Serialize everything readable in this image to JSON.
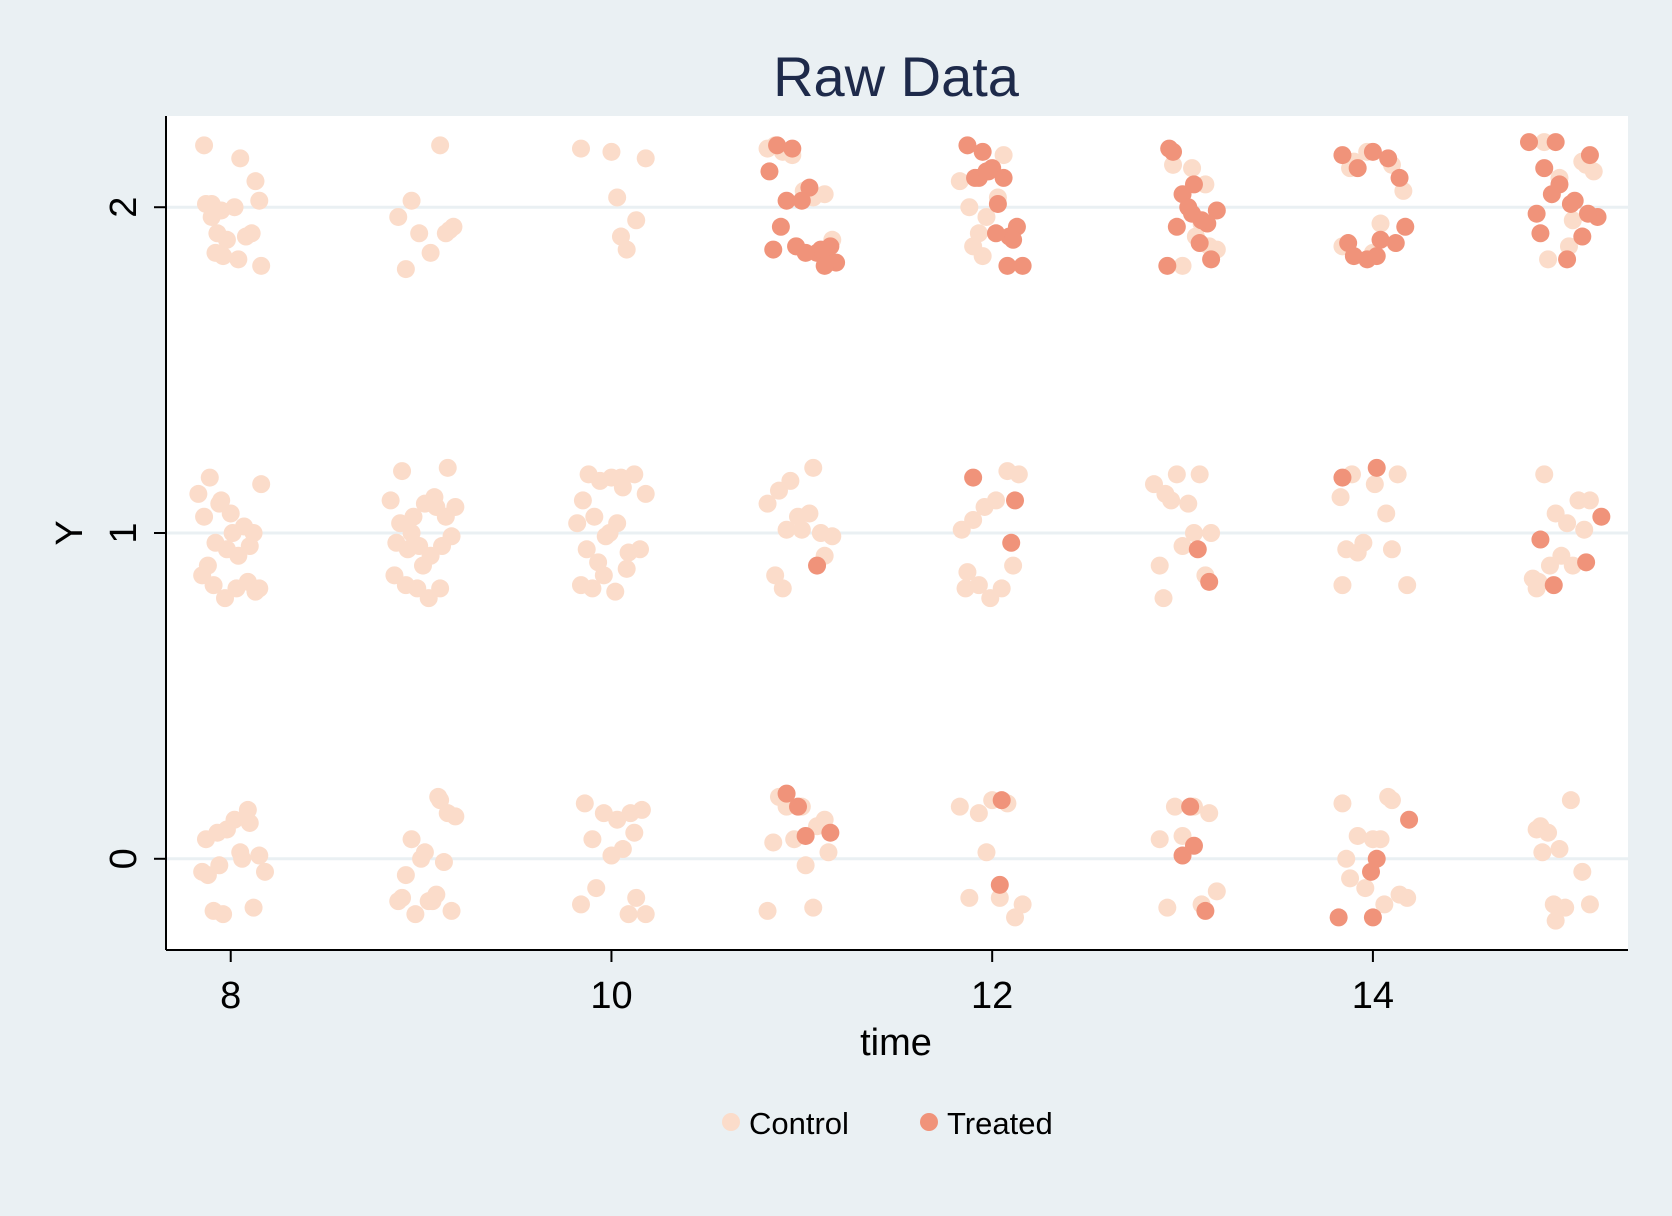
{
  "chart_data": {
    "type": "scatter",
    "title": "Raw Data",
    "xlabel": "time",
    "ylabel": "Y",
    "xlim": [
      7.66,
      15.34
    ],
    "ylim": [
      -0.28,
      2.28
    ],
    "xticks": [
      "8",
      "10",
      "12",
      "14"
    ],
    "xtick_values": [
      8,
      10,
      12,
      14
    ],
    "yticks": [
      "0",
      "1",
      "2"
    ],
    "ytick_values": [
      0,
      1,
      2
    ],
    "grid": "horizontal",
    "legend_position": "bottom",
    "series": [
      {
        "name": "Control",
        "color": "#fbdcca",
        "x": [
          7.86,
          8.05,
          8.13,
          7.9,
          7.95,
          8.02,
          8.15,
          7.93,
          8.08,
          7.96,
          8.04,
          7.92,
          8.11,
          7.87,
          8.16,
          7.9,
          7.98,
          8.88,
          8.95,
          9.05,
          9.13,
          9.17,
          8.92,
          9.1,
          8.99,
          9.15,
          9.84,
          10.0,
          10.03,
          10.18,
          10.05,
          10.13,
          10.08,
          10.82,
          10.86,
          10.95,
          11.01,
          11.06,
          11.12,
          10.9,
          11.16,
          10.97,
          11.83,
          11.88,
          11.93,
          11.97,
          12.03,
          12.06,
          11.9,
          11.95,
          12.95,
          13.05,
          13.1,
          13.14,
          13.18,
          13.0,
          13.12,
          13.07,
          13.84,
          13.9,
          13.97,
          14.04,
          14.1,
          14.16,
          13.88,
          14.0,
          14.9,
          14.98,
          15.05,
          15.1,
          15.16,
          14.92,
          15.12,
          15.03,
          7.83,
          7.89,
          7.94,
          8.0,
          8.07,
          8.12,
          8.16,
          7.86,
          7.92,
          7.98,
          8.04,
          8.1,
          7.85,
          7.91,
          7.97,
          8.03,
          8.09,
          8.15,
          7.88,
          7.95,
          8.01,
          8.13,
          8.84,
          8.9,
          8.96,
          9.02,
          9.08,
          9.14,
          9.18,
          8.87,
          8.93,
          8.99,
          9.05,
          9.11,
          9.16,
          8.86,
          8.92,
          8.98,
          9.04,
          9.1,
          8.89,
          8.95,
          9.01,
          9.07,
          9.13,
          9.82,
          9.88,
          9.94,
          10.0,
          10.06,
          10.12,
          10.18,
          9.85,
          9.91,
          9.97,
          10.03,
          10.09,
          10.15,
          9.84,
          9.9,
          9.96,
          10.02,
          10.08,
          9.87,
          9.93,
          9.99,
          10.05,
          10.82,
          10.88,
          10.94,
          11.0,
          11.06,
          11.12,
          10.86,
          10.92,
          10.98,
          11.04,
          11.1,
          11.16,
          10.9,
          11.84,
          11.9,
          11.96,
          12.02,
          12.08,
          12.14,
          11.87,
          11.93,
          11.99,
          12.05,
          12.11,
          11.86,
          12.85,
          12.91,
          12.97,
          13.03,
          13.09,
          13.15,
          12.88,
          12.94,
          13.0,
          13.06,
          13.12,
          12.9,
          13.83,
          13.89,
          13.95,
          14.01,
          14.07,
          14.13,
          13.86,
          13.92,
          14.1,
          14.18,
          13.84,
          14.84,
          14.9,
          14.96,
          15.02,
          15.08,
          15.14,
          14.87,
          14.93,
          14.99,
          15.05,
          15.11,
          14.86,
          7.88,
          7.93,
          8.02,
          8.09,
          8.15,
          7.96,
          8.12,
          7.85,
          8.05,
          7.91,
          8.18,
          7.98,
          8.06,
          7.87,
          7.94,
          8.1,
          8.92,
          9.02,
          9.09,
          9.14,
          9.18,
          8.97,
          9.06,
          9.12,
          8.9,
          9.0,
          9.16,
          8.95,
          9.04,
          9.1,
          8.88,
          9.08,
          9.86,
          9.96,
          10.03,
          10.1,
          10.16,
          9.92,
          10.06,
          10.13,
          9.84,
          10.0,
          10.18,
          9.9,
          10.09,
          10.12,
          10.85,
          10.92,
          11.0,
          11.08,
          11.14,
          10.88,
          11.02,
          10.96,
          11.06,
          10.82,
          11.12,
          11.83,
          11.93,
          12.0,
          12.08,
          12.16,
          11.97,
          12.04,
          11.88,
          12.12,
          12.88,
          12.96,
          13.06,
          13.14,
          12.92,
          13.0,
          13.1,
          13.18,
          13.84,
          13.92,
          14.0,
          14.08,
          14.14,
          13.88,
          14.04,
          14.18,
          13.96,
          14.1,
          13.86,
          14.06,
          14.86,
          14.92,
          14.98,
          15.04,
          15.1,
          14.89,
          14.95,
          15.01,
          14.88,
          14.96,
          15.14
        ],
        "y": [
          2.19,
          2.15,
          2.08,
          2.01,
          1.99,
          2.0,
          2.02,
          1.92,
          1.91,
          1.85,
          1.84,
          1.86,
          1.92,
          2.01,
          1.82,
          1.97,
          1.9,
          1.97,
          2.02,
          1.86,
          1.92,
          1.94,
          1.81,
          2.19,
          1.92,
          1.93,
          2.18,
          2.17,
          2.03,
          2.15,
          1.91,
          1.96,
          1.87,
          2.18,
          2.19,
          2.16,
          2.05,
          2.03,
          2.04,
          2.17,
          1.9,
          1.88,
          2.08,
          2.0,
          1.92,
          1.97,
          2.03,
          2.16,
          1.88,
          1.85,
          2.13,
          2.12,
          1.95,
          1.88,
          1.87,
          1.82,
          2.07,
          1.91,
          1.88,
          2.14,
          2.17,
          1.95,
          2.13,
          2.05,
          2.12,
          1.86,
          2.2,
          2.09,
          1.96,
          2.14,
          2.11,
          1.84,
          2.13,
          1.88,
          1.12,
          1.17,
          1.09,
          1.06,
          1.02,
          1.0,
          1.15,
          1.05,
          0.97,
          0.95,
          0.93,
          0.96,
          0.87,
          0.84,
          0.8,
          0.83,
          0.85,
          0.83,
          0.9,
          1.1,
          1.0,
          0.82,
          1.1,
          1.19,
          1.05,
          1.09,
          1.08,
          1.2,
          1.08,
          0.97,
          0.95,
          0.96,
          0.93,
          0.96,
          0.99,
          0.87,
          0.84,
          0.83,
          0.8,
          0.83,
          1.03,
          1.0,
          0.9,
          1.11,
          1.05,
          1.03,
          1.18,
          1.16,
          1.17,
          1.14,
          1.18,
          1.12,
          1.1,
          1.05,
          0.99,
          1.03,
          0.94,
          0.95,
          0.84,
          0.83,
          0.87,
          0.82,
          0.89,
          0.95,
          0.91,
          1.0,
          1.17,
          1.09,
          1.13,
          1.16,
          1.01,
          1.2,
          0.93,
          0.87,
          1.01,
          1.05,
          1.06,
          1.0,
          0.99,
          0.83,
          1.01,
          1.04,
          1.08,
          1.1,
          1.19,
          1.18,
          0.88,
          0.84,
          0.8,
          0.83,
          0.9,
          0.83,
          1.15,
          1.12,
          1.18,
          1.09,
          1.18,
          1.0,
          0.9,
          1.1,
          0.96,
          1.0,
          0.87,
          0.8,
          1.11,
          1.18,
          0.97,
          1.15,
          1.06,
          1.18,
          0.95,
          0.94,
          0.95,
          0.84,
          0.84,
          0.86,
          1.18,
          1.06,
          1.03,
          1.1,
          1.1,
          0.85,
          0.9,
          0.93,
          0.9,
          1.01,
          0.83,
          -0.05,
          0.08,
          0.12,
          0.15,
          0.01,
          -0.17,
          -0.15,
          -0.04,
          0.02,
          -0.16,
          -0.04,
          0.09,
          0.0,
          0.06,
          -0.02,
          0.11,
          -0.05,
          0.02,
          0.19,
          0.14,
          0.13,
          -0.17,
          -0.13,
          -0.01,
          -0.12,
          0.0,
          -0.16,
          0.06,
          -0.13,
          0.18,
          -0.13,
          -0.11,
          0.17,
          0.14,
          0.12,
          0.14,
          0.15,
          -0.09,
          0.03,
          -0.12,
          -0.14,
          0.01,
          -0.17,
          0.06,
          -0.17,
          0.08,
          0.05,
          0.16,
          0.16,
          0.1,
          0.02,
          0.19,
          -0.02,
          0.06,
          -0.15,
          -0.16,
          0.12,
          0.16,
          0.14,
          0.18,
          0.17,
          -0.14,
          0.02,
          -0.12,
          -0.12,
          -0.18,
          0.06,
          0.16,
          0.16,
          0.14,
          -0.15,
          0.07,
          -0.14,
          -0.1,
          0.17,
          0.07,
          0.06,
          0.19,
          -0.11,
          -0.06,
          0.06,
          -0.12,
          -0.09,
          0.18,
          0.0,
          -0.14,
          0.09,
          0.08,
          0.03,
          0.18,
          -0.04,
          0.02,
          -0.14,
          -0.15,
          0.1,
          -0.19,
          -0.14
        ]
      },
      {
        "name": "Treated",
        "color": "#f0937a",
        "x": [
          10.87,
          10.95,
          11.04,
          11.13,
          11.18,
          10.83,
          10.92,
          11.0,
          11.08,
          11.15,
          10.89,
          10.97,
          11.1,
          10.85,
          11.02,
          11.12,
          11.87,
          11.95,
          12.0,
          12.06,
          12.13,
          11.91,
          11.98,
          12.03,
          12.09,
          12.16,
          11.93,
          12.02,
          12.08,
          11.97,
          12.11,
          12.93,
          13.0,
          13.06,
          13.13,
          13.18,
          12.95,
          13.03,
          13.09,
          13.15,
          12.97,
          13.1,
          13.05,
          12.92,
          13.84,
          13.92,
          14.0,
          14.08,
          14.14,
          13.87,
          13.97,
          14.04,
          14.12,
          14.17,
          13.9,
          14.02,
          14.82,
          14.9,
          14.98,
          15.06,
          15.14,
          14.86,
          14.94,
          15.02,
          15.1,
          15.18,
          14.88,
          14.96,
          15.04,
          15.13,
          11.08,
          11.9,
          12.12,
          12.1,
          13.08,
          13.14,
          13.84,
          14.02,
          15.2,
          14.88,
          15.12,
          14.95,
          10.92,
          11.02,
          10.98,
          11.15,
          12.05,
          12.04,
          13.04,
          13.12,
          13.06,
          13.0,
          14.19,
          13.99,
          13.82,
          14.0,
          14.02
        ],
        "y": [
          2.19,
          2.18,
          2.06,
          1.87,
          1.83,
          2.11,
          2.02,
          2.02,
          1.86,
          1.88,
          1.94,
          1.88,
          1.87,
          1.87,
          1.86,
          1.82,
          2.19,
          2.17,
          2.12,
          2.09,
          1.94,
          2.09,
          2.11,
          2.01,
          1.91,
          1.82,
          2.09,
          1.92,
          1.82,
          2.11,
          1.9,
          2.18,
          2.04,
          2.07,
          1.95,
          1.99,
          2.17,
          2.0,
          1.89,
          1.84,
          1.94,
          1.96,
          1.98,
          1.82,
          2.16,
          2.12,
          2.17,
          2.15,
          2.09,
          1.89,
          1.84,
          1.9,
          1.89,
          1.94,
          1.85,
          1.85,
          2.2,
          2.12,
          2.07,
          2.02,
          2.16,
          1.98,
          2.04,
          1.84,
          1.91,
          1.97,
          1.92,
          2.2,
          2.01,
          1.98,
          0.9,
          1.17,
          1.1,
          0.97,
          0.95,
          0.85,
          1.17,
          1.2,
          1.05,
          0.98,
          0.91,
          0.84,
          0.2,
          0.07,
          0.16,
          0.08,
          0.18,
          -0.08,
          0.16,
          -0.16,
          0.04,
          0.01,
          0.12,
          -0.04,
          -0.18,
          -0.18,
          0.0
        ]
      }
    ]
  }
}
